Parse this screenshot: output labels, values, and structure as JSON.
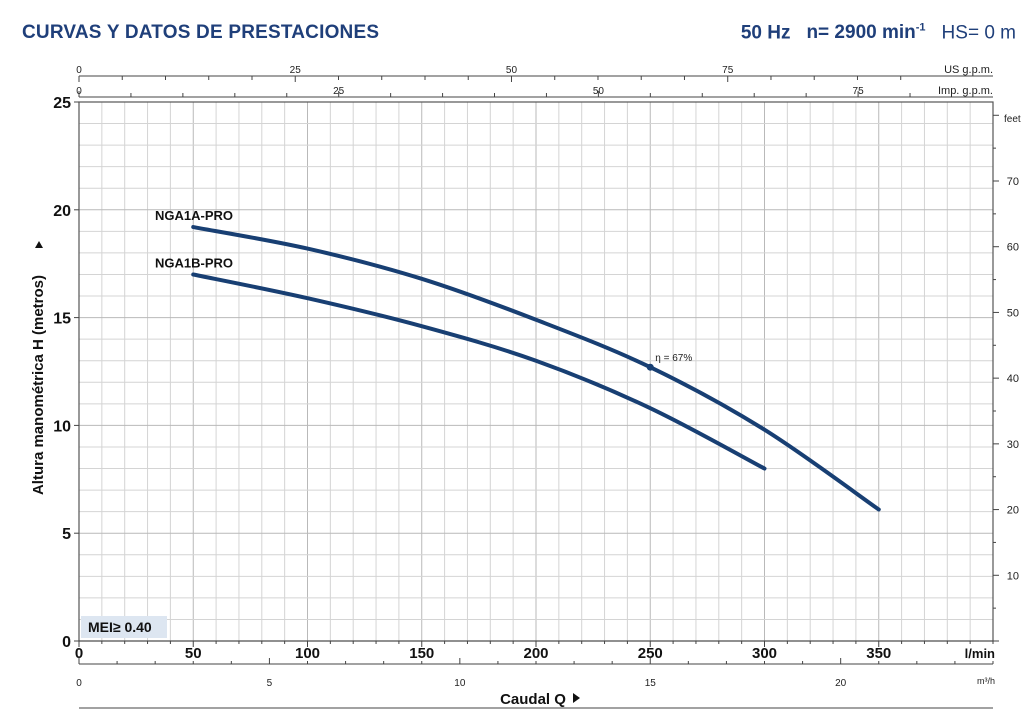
{
  "header": {
    "title": "CURVAS Y DATOS DE PRESTACIONES",
    "freq": "50 Hz",
    "speed": "n= 2900 min",
    "speed_exp": "-1",
    "hs": "HS= 0 m"
  },
  "colors": {
    "curve": "#183f73",
    "title": "#1f3f7a",
    "grid": "#c8c8c8",
    "badge_bg": "#dde6f1"
  },
  "mei_badge": "MEI≥ 0.40",
  "efficiency_label": "η = 67%",
  "chart_data": {
    "type": "line",
    "xlabel": "Caudal Q",
    "ylabel": "Altura manométrica H (metros)",
    "x_unit": "l/min",
    "xlim": [
      0,
      400
    ],
    "ylim": [
      0,
      25
    ],
    "x_ticks": [
      0,
      50,
      100,
      150,
      200,
      250,
      300,
      350
    ],
    "y_ticks": [
      0,
      5,
      10,
      15,
      20,
      25
    ],
    "grid": true,
    "series": [
      {
        "name": "NGA1A-PRO",
        "x": [
          50,
          100,
          150,
          200,
          250,
          300,
          350
        ],
        "y": [
          19.2,
          18.2,
          16.8,
          14.9,
          12.7,
          9.8,
          6.1
        ]
      },
      {
        "name": "NGA1B-PRO",
        "x": [
          50,
          100,
          150,
          200,
          250,
          300
        ],
        "y": [
          17.0,
          15.9,
          14.6,
          13.0,
          10.8,
          8.0
        ]
      }
    ],
    "annotation": {
      "text": "η = 67%",
      "x": 250,
      "y": 12.7
    },
    "secondary_axes": {
      "feet": {
        "label": "feet",
        "ticks": [
          10,
          20,
          30,
          40,
          50,
          60,
          70
        ]
      },
      "m3h": {
        "label": "m³/h",
        "ticks": [
          0,
          5,
          10,
          15,
          20
        ]
      },
      "us_gpm": {
        "label": "US g.p.m.",
        "ticks": [
          0,
          25,
          50,
          75
        ]
      },
      "imp_gpm": {
        "label": "Imp. g.p.m.",
        "ticks": [
          0,
          25,
          50,
          75
        ]
      }
    }
  }
}
